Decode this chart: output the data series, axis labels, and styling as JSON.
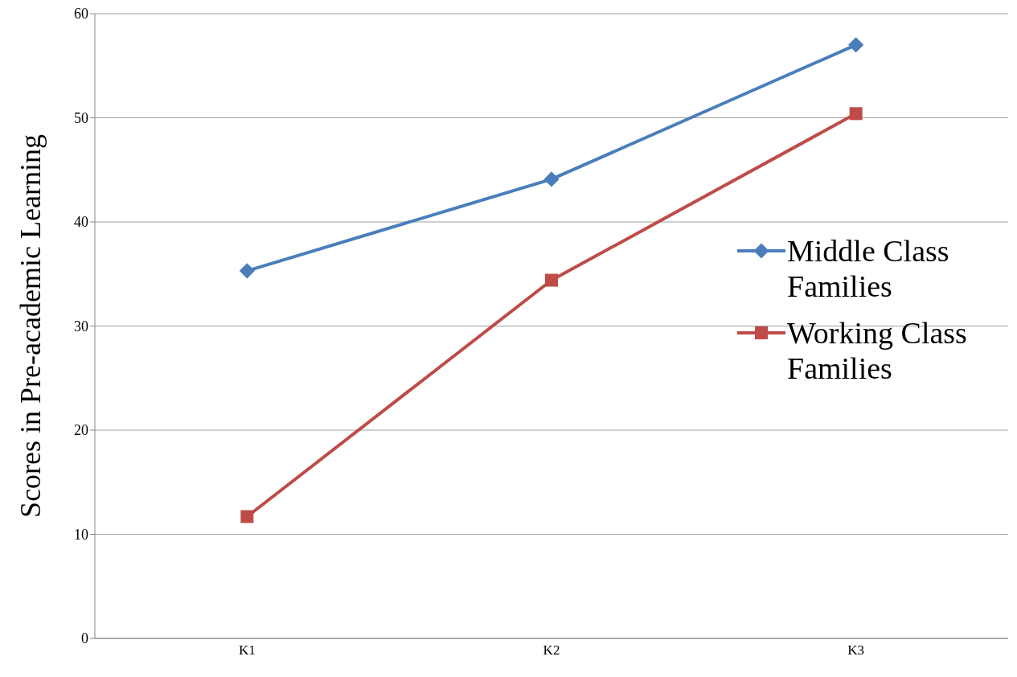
{
  "chart_data": {
    "type": "line",
    "ylabel": "Scores in Pre-academic Learning",
    "categories": [
      "K1",
      "K2",
      "K3"
    ],
    "series": [
      {
        "name": "Middle Class Families",
        "color": "#4a7ebb",
        "marker": "diamond",
        "values": [
          35.3,
          44.1,
          57.0
        ]
      },
      {
        "name": "Working Class Families",
        "color": "#be4b48",
        "marker": "square",
        "values": [
          11.7,
          34.4,
          50.4
        ]
      }
    ],
    "ylim": [
      0,
      60
    ],
    "yticks": [
      0,
      10,
      20,
      30,
      40,
      50,
      60
    ],
    "grid": "y",
    "legend": "right"
  }
}
